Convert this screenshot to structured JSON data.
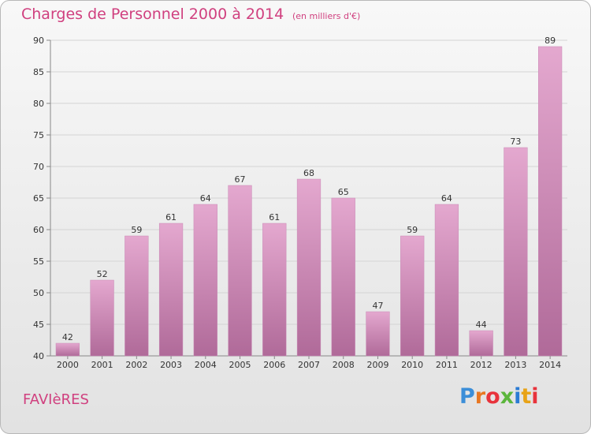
{
  "title": "Charges de Personnel 2000 à 2014",
  "subtitle": "(en milliers d'€)",
  "commune": "FAVIèRES",
  "logo": "Proxiti",
  "logo_colors": [
    "#3b8ed8",
    "#e87722",
    "#e8333c",
    "#5bb63c",
    "#2a7bd4",
    "#e8a317",
    "#e8333c"
  ],
  "colors": {
    "title": "#d0407f",
    "bar_light": "#e4a8cf",
    "bar_dark": "#b06a99"
  },
  "chart_data": {
    "type": "bar",
    "categories": [
      "2000",
      "2001",
      "2002",
      "2003",
      "2004",
      "2005",
      "2006",
      "2007",
      "2008",
      "2009",
      "2010",
      "2011",
      "2012",
      "2013",
      "2014"
    ],
    "values": [
      42,
      52,
      59,
      61,
      64,
      67,
      61,
      68,
      65,
      47,
      59,
      64,
      44,
      73,
      89
    ],
    "title": "Charges de Personnel 2000 à 2014",
    "subtitle": "(en milliers d'€)",
    "xlabel": "",
    "ylabel": "",
    "ylim": [
      40,
      90
    ],
    "yticks": [
      40,
      45,
      50,
      55,
      60,
      65,
      70,
      75,
      80,
      85,
      90
    ],
    "grid": true,
    "data_labels": true
  }
}
